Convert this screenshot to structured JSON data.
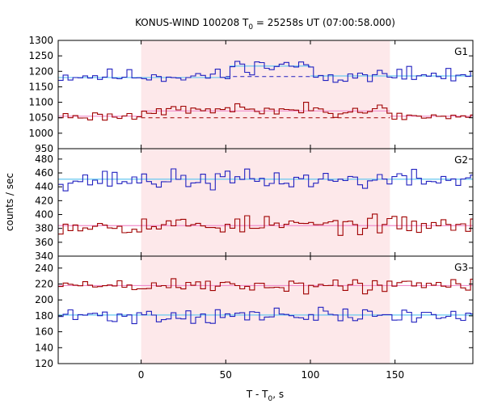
{
  "chart_data": {
    "type": "line",
    "title_main": "KONUS-WIND 100208 T",
    "title_sub": "0",
    "title_rest": " = 25258s UT (07:00:58.000)",
    "xlabel_main": "T - T",
    "xlabel_sub": "0",
    "xlabel_rest": ", s",
    "ylabel": "counts / sec",
    "xlim": [
      -49,
      196
    ],
    "x_ticks": [
      "0",
      "50",
      "100",
      "150"
    ],
    "x_tick_values": [
      0,
      50,
      100,
      150
    ],
    "shaded_interval": [
      0,
      147
    ],
    "colors": {
      "shade": "#fde8ea",
      "blue": "#2020c0",
      "red": "#a00000",
      "fit_blue": "#66c8f0",
      "fit_red": "#f08ccc"
    },
    "panels": [
      {
        "label": "G1",
        "ylim": [
          950,
          1300
        ],
        "y_ticks": [
          "950",
          "1000",
          "1050",
          "1100",
          "1150",
          "1200",
          "1250",
          "1300"
        ],
        "y_tick_values": [
          950,
          1000,
          1050,
          1100,
          1150,
          1200,
          1250,
          1300
        ],
        "blue_seed": 11,
        "blue_level": 1185,
        "blue_noise": 16,
        "blue_bumps": [
          {
            "from": 52,
            "to": 100,
            "add": 32
          }
        ],
        "red_seed": 23,
        "red_level": 1055,
        "red_noise": 11,
        "red_bumps": [
          {
            "from": 0,
            "to": 147,
            "add": 20
          }
        ],
        "blue_bg": 1183,
        "red_bg": 1052,
        "blue_dashed": [
          {
            "from": 50,
            "to": 100,
            "y": 1183
          }
        ],
        "red_dashed": [
          {
            "from": 0,
            "to": 147,
            "y": 1050
          }
        ],
        "blue_fit": [
          {
            "from": -49,
            "to": 52,
            "y": 1180
          },
          {
            "from": 52,
            "to": 100,
            "y": 1217
          },
          {
            "from": 100,
            "to": 196,
            "y": 1185
          }
        ],
        "red_fit": [
          {
            "from": -49,
            "to": 0,
            "y": 1055
          },
          {
            "from": 0,
            "to": 147,
            "y": 1072
          },
          {
            "from": 147,
            "to": 196,
            "y": 1055
          }
        ]
      },
      {
        "label": "G2",
        "ylim": [
          340,
          495
        ],
        "y_ticks": [
          "340",
          "360",
          "380",
          "400",
          "420",
          "440",
          "460",
          "480"
        ],
        "y_tick_values": [
          340,
          360,
          380,
          400,
          420,
          440,
          460,
          480
        ],
        "blue_seed": 37,
        "blue_level": 450,
        "blue_noise": 10,
        "blue_bumps": [],
        "red_seed": 53,
        "red_level": 385,
        "red_noise": 9,
        "red_bumps": [],
        "blue_bg": 450,
        "red_bg": 384,
        "blue_dashed": [],
        "red_dashed": [],
        "blue_fit": [
          {
            "from": -49,
            "to": 196,
            "y": 451
          }
        ],
        "red_fit": [
          {
            "from": -49,
            "to": 196,
            "y": 384
          }
        ]
      },
      {
        "label": "G3",
        "ylim": [
          120,
          255
        ],
        "y_ticks": [
          "120",
          "140",
          "160",
          "180",
          "200",
          "220",
          "240"
        ],
        "y_tick_values": [
          120,
          140,
          160,
          180,
          200,
          220,
          240
        ],
        "blue_seed": 71,
        "blue_level": 180,
        "blue_noise": 7,
        "blue_bumps": [],
        "red_seed": 89,
        "red_level": 218,
        "red_noise": 7,
        "red_bumps": [],
        "blue_bg": 180,
        "red_bg": 218,
        "blue_dashed": [],
        "red_dashed": [],
        "blue_fit": [
          {
            "from": -49,
            "to": 196,
            "y": 181
          }
        ],
        "red_fit": [
          {
            "from": -49,
            "to": 196,
            "y": 218
          }
        ]
      }
    ],
    "bin_width": 2.9
  }
}
